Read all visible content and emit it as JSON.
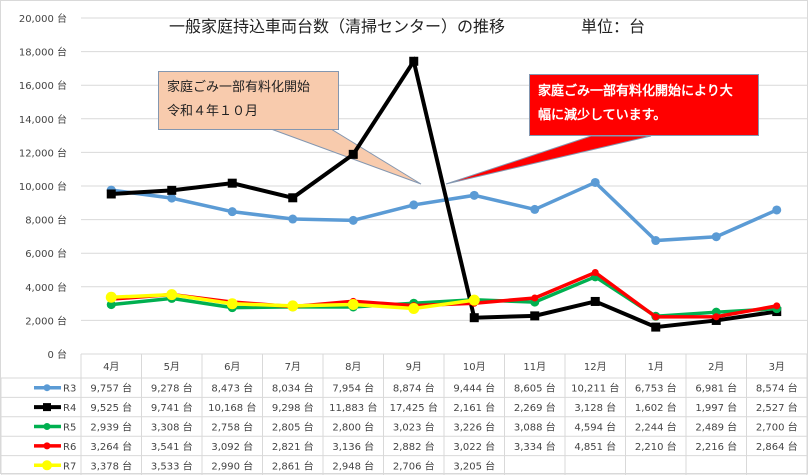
{
  "chart_data": {
    "type": "line",
    "title": "一般家庭持込車両台数（清掃センター）の推移",
    "unit_label": "単位：台",
    "categories": [
      "4月",
      "5月",
      "6月",
      "7月",
      "8月",
      "9月",
      "10月",
      "11月",
      "12月",
      "1月",
      "2月",
      "3月"
    ],
    "ylim": [
      0,
      20000
    ],
    "yticks": [
      "0 台",
      "2,000 台",
      "4,000 台",
      "6,000 台",
      "8,000 台",
      "10,000 台",
      "12,000 台",
      "14,000 台",
      "16,000 台",
      "18,000 台",
      "20,000 台"
    ],
    "grid": true,
    "legend": "data-table",
    "series": [
      {
        "name": "R3",
        "color": "#5b9bd5",
        "marker": "circle",
        "values": [
          9757,
          9278,
          8473,
          8034,
          7954,
          8874,
          9444,
          8605,
          10211,
          6753,
          6981,
          8574
        ],
        "labels": [
          "9,757 台",
          "9,278 台",
          "8,473 台",
          "8,034 台",
          "7,954 台",
          "8,874 台",
          "9,444 台",
          "8,605 台",
          "10,211 台",
          "6,753 台",
          "6,981 台",
          "8,574 台"
        ]
      },
      {
        "name": "R4",
        "color": "#000000",
        "marker": "square",
        "values": [
          9525,
          9741,
          10168,
          9298,
          11883,
          17425,
          2161,
          2269,
          3128,
          1602,
          1997,
          2527
        ],
        "labels": [
          "9,525 台",
          "9,741 台",
          "10,168 台",
          "9,298 台",
          "11,883 台",
          "17,425 台",
          "2,161 台",
          "2,269 台",
          "3,128 台",
          "1,602 台",
          "1,997 台",
          "2,527 台"
        ]
      },
      {
        "name": "R5",
        "color": "#00b050",
        "marker": "circle",
        "values": [
          2939,
          3308,
          2758,
          2805,
          2800,
          3023,
          3226,
          3088,
          4594,
          2244,
          2489,
          2700
        ],
        "labels": [
          "2,939 台",
          "3,308 台",
          "2,758 台",
          "2,805 台",
          "2,800 台",
          "3,023 台",
          "3,226 台",
          "3,088 台",
          "4,594 台",
          "2,244 台",
          "2,489 台",
          "2,700 台"
        ]
      },
      {
        "name": "R6",
        "color": "#ff0000",
        "marker": "circle",
        "values": [
          3264,
          3541,
          3092,
          2821,
          3136,
          2882,
          3022,
          3334,
          4851,
          2210,
          2216,
          2864
        ],
        "labels": [
          "3,264 台",
          "3,541 台",
          "3,092 台",
          "2,821 台",
          "3,136 台",
          "2,882 台",
          "3,022 台",
          "3,334 台",
          "4,851 台",
          "2,210 台",
          "2,216 台",
          "2,864 台"
        ]
      },
      {
        "name": "R7",
        "color": "#ffff00",
        "marker": "circle",
        "values": [
          3378,
          3533,
          2990,
          2861,
          2948,
          2706,
          3205,
          null,
          null,
          null,
          null,
          null
        ],
        "labels": [
          "3,378 台",
          "3,533 台",
          "2,990 台",
          "2,861 台",
          "2,948 台",
          "2,706 台",
          "3,205 台",
          "",
          "",
          "",
          "",
          ""
        ]
      }
    ],
    "annotations": [
      {
        "text": [
          "家庭ごみ一部有料化開始",
          "令和４年１０月"
        ],
        "fill": "#f8cbad"
      },
      {
        "text": [
          "家庭ごみ一部有料化開始により大",
          "幅に減少しています。"
        ],
        "fill": "#ff0000"
      }
    ]
  }
}
